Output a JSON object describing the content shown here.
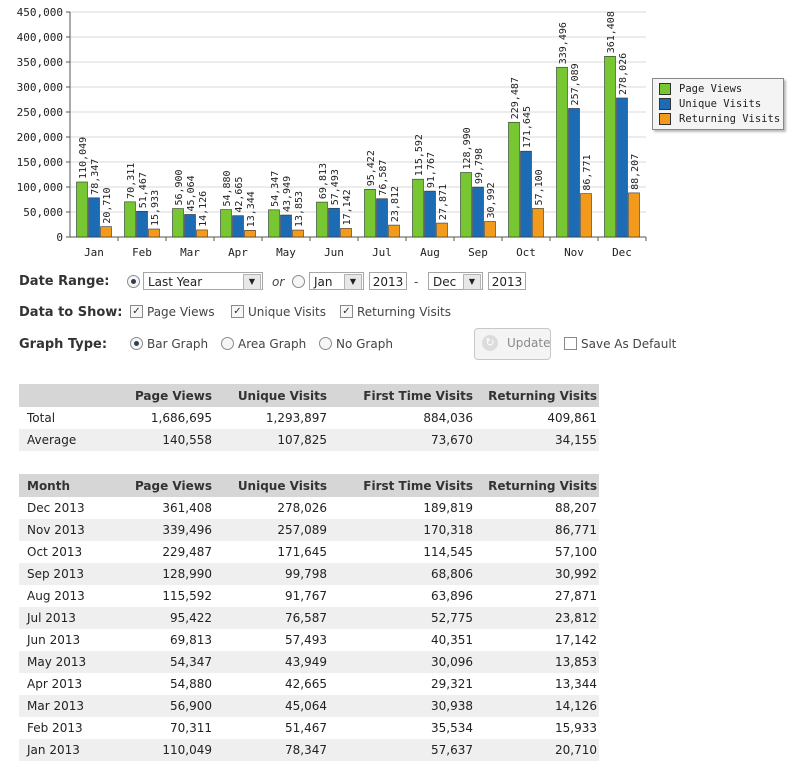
{
  "chart_data": {
    "type": "bar",
    "categories": [
      "Jan",
      "Feb",
      "Mar",
      "Apr",
      "May",
      "Jun",
      "Jul",
      "Aug",
      "Sep",
      "Oct",
      "Nov",
      "Dec"
    ],
    "series": [
      {
        "name": "Page Views",
        "color": "#77c733",
        "values": [
          110049,
          70311,
          56900,
          54880,
          54347,
          69813,
          95422,
          115592,
          128990,
          229487,
          339496,
          361408
        ]
      },
      {
        "name": "Unique Visits",
        "color": "#1b6cb5",
        "values": [
          78347,
          51467,
          45064,
          42665,
          43949,
          57493,
          76587,
          91767,
          99798,
          171645,
          257089,
          278026
        ]
      },
      {
        "name": "Returning Visits",
        "color": "#f19a1b",
        "values": [
          20710,
          15933,
          14126,
          13344,
          13853,
          17142,
          23812,
          27871,
          30992,
          57100,
          86771,
          88207
        ]
      }
    ],
    "ylim": [
      0,
      450000
    ],
    "yticks": [
      "0",
      "50,000",
      "100,000",
      "150,000",
      "200,000",
      "250,000",
      "300,000",
      "350,000",
      "400,000",
      "450,000"
    ],
    "grid": true,
    "legend_position": "right"
  },
  "controls": {
    "date_range_label": "Date Range:",
    "range_select": "Last Year",
    "or_label": "or",
    "from_month": "Jan",
    "from_year": "2013",
    "dash": "-",
    "to_month": "Dec",
    "to_year": "2013",
    "data_to_show_label": "Data to Show:",
    "show_page_views": "Page Views",
    "show_unique_visits": "Unique Visits",
    "show_returning_visits": "Returning Visits",
    "graph_type_label": "Graph Type:",
    "bar_graph": "Bar Graph",
    "area_graph": "Area Graph",
    "no_graph": "No Graph",
    "update_button": "Update",
    "save_default": "Save As Default"
  },
  "summary": {
    "headers": [
      "",
      "Page Views",
      "Unique Visits",
      "First Time Visits",
      "Returning Visits"
    ],
    "rows": [
      [
        "Total",
        "1,686,695",
        "1,293,897",
        "884,036",
        "409,861"
      ],
      [
        "Average",
        "140,558",
        "107,825",
        "73,670",
        "34,155"
      ]
    ]
  },
  "monthly": {
    "headers": [
      "Month",
      "Page Views",
      "Unique Visits",
      "First Time Visits",
      "Returning Visits"
    ],
    "rows": [
      [
        "Dec 2013",
        "361,408",
        "278,026",
        "189,819",
        "88,207"
      ],
      [
        "Nov 2013",
        "339,496",
        "257,089",
        "170,318",
        "86,771"
      ],
      [
        "Oct 2013",
        "229,487",
        "171,645",
        "114,545",
        "57,100"
      ],
      [
        "Sep 2013",
        "128,990",
        "99,798",
        "68,806",
        "30,992"
      ],
      [
        "Aug 2013",
        "115,592",
        "91,767",
        "63,896",
        "27,871"
      ],
      [
        "Jul 2013",
        "95,422",
        "76,587",
        "52,775",
        "23,812"
      ],
      [
        "Jun 2013",
        "69,813",
        "57,493",
        "40,351",
        "17,142"
      ],
      [
        "May 2013",
        "54,347",
        "43,949",
        "30,096",
        "13,853"
      ],
      [
        "Apr 2013",
        "54,880",
        "42,665",
        "29,321",
        "13,344"
      ],
      [
        "Mar 2013",
        "56,900",
        "45,064",
        "30,938",
        "14,126"
      ],
      [
        "Feb 2013",
        "70,311",
        "51,467",
        "35,534",
        "15,933"
      ],
      [
        "Jan 2013",
        "110,049",
        "78,347",
        "57,637",
        "20,710"
      ]
    ]
  }
}
